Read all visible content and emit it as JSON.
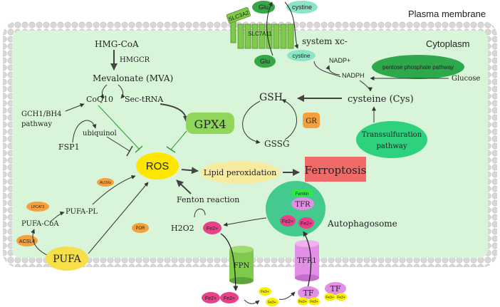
{
  "labels": {
    "plasma_membrane": "Plasma membrane",
    "cytoplasm": "Cytoplasm",
    "system_xc": "system xc-",
    "slc3a2": "SLC3A2",
    "slc7a11": "SLC7A11",
    "glu_out": "Glu",
    "cystine_out": "cystine",
    "glu_in": "Glu",
    "cystine_in": "cystine",
    "nadp_plus": "NADP+",
    "nadph": "NADPH",
    "pentose_phosphate": "pentose phosphate pathway",
    "glucose": "Glucose",
    "hmg_coa": "HMG-CoA",
    "hmgcr": "HMGCR",
    "mevalonate": "Mevalonate (MVA)",
    "coq10": "CoQ10",
    "sec_trna": "Sec-tRNA",
    "gch1_line1": "GCH1/BH4",
    "gch1_line2": "pathway",
    "ubiquinol": "ubiquinol",
    "fsp1": "FSP1",
    "gsh": "GSH",
    "gssg": "GSSG",
    "gr": "GR",
    "cysteine": "cysteine (Cys)",
    "gpx4": "GPX4",
    "transsulfuration_line1": "Transsulfuration",
    "transsulfuration_line2": "pathway",
    "ros": "ROS",
    "lipid_peroxidation": "Lipid peroxidation",
    "ferroptosis": "Ferroptosis",
    "alox": "ALOXs",
    "lpcat3": "LPCAT3",
    "pufa_pl": "PUFA-PL",
    "pufa_coa": "PUFA-CoA",
    "acsl4": "ACSL4",
    "pufa": "PUFA",
    "por": "POR",
    "fenton": "Fenton reaction",
    "h2o2": "H2O2",
    "fe2_a": "Fe2+",
    "ferritin": "Ferritin",
    "tfr_inner": "TFR",
    "fe2_b": "Fe2+",
    "fe2_c": "Fe2+",
    "autophagosome": "Autophagosome",
    "fpn": "FPN",
    "tfr1": "TFR1",
    "fe2_d": "Fe2+",
    "fe2_e": "Fe2+",
    "fe3_a": "Fe3+",
    "fe3_b": "Fe3+",
    "tf_a": "TF",
    "tf_a_fe1": "Fe3+",
    "tf_a_fe2": "Fe3+",
    "tf_b": "TF",
    "tf_b_fe1": "Fe3+",
    "tf_b_fe2": "Fe3+"
  },
  "colors": {
    "cytoplasm_fill": "#d9f5d9",
    "membrane_bead": "#d8d8d8",
    "ros_yellow": "#ffe600",
    "pufa_yellow": "#f5e04a",
    "gpx4_green": "#8fd65a",
    "transsulfuration_green": "#2ed27e",
    "pentose_green": "#2da84a",
    "ferroptosis_red": "#f06a6a",
    "lipid_yellow": "#f7eba0",
    "orange_enzyme": "#f5a03c",
    "fe2_pink": "#ea3f8b",
    "fe3_yellow": "#f8f200",
    "channel_purple": "#e38fe6",
    "channel_green": "#7fc94b",
    "autophagosome_green": "#44c98e",
    "cystine_teal": "#8ae6c5",
    "glu_green": "#35a845"
  }
}
